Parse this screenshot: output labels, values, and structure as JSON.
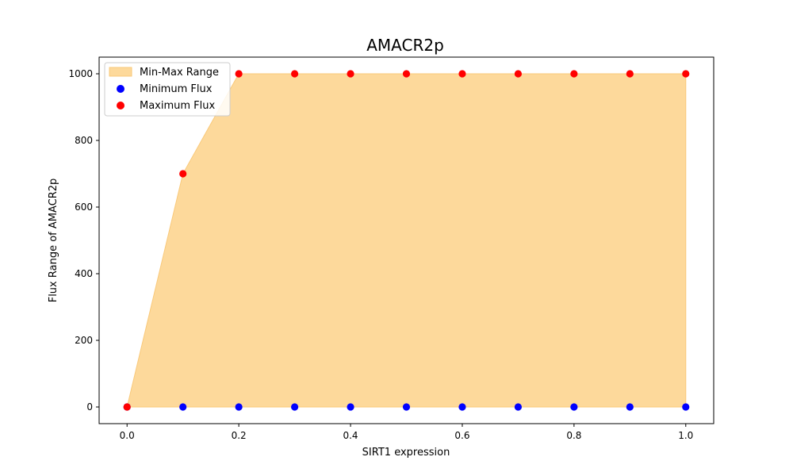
{
  "chart_data": {
    "type": "area",
    "title": "AMACR2p",
    "xlabel": "SIRT1 expression",
    "ylabel": "Flux Range of AMACR2p",
    "x": [
      0.0,
      0.1,
      0.2,
      0.3,
      0.4,
      0.5,
      0.6,
      0.7,
      0.8,
      0.9,
      1.0
    ],
    "series": [
      {
        "name": "Minimum Flux",
        "kind": "scatter",
        "color": "#0000ff",
        "values": [
          0,
          0,
          0,
          0,
          0,
          0,
          0,
          0,
          0,
          0,
          0
        ]
      },
      {
        "name": "Maximum Flux",
        "kind": "scatter",
        "color": "#ff0000",
        "values": [
          0,
          700,
          1000,
          1000,
          1000,
          1000,
          1000,
          1000,
          1000,
          1000,
          1000
        ]
      }
    ],
    "fill": {
      "name": "Min-Max Range",
      "color": "#fdd99b",
      "edge_color": "#f9c97a"
    },
    "xlim": [
      -0.05,
      1.05
    ],
    "ylim": [
      -50,
      1050
    ],
    "xticks": [
      0.0,
      0.2,
      0.4,
      0.6,
      0.8,
      1.0
    ],
    "xtick_labels": [
      "0.0",
      "0.2",
      "0.4",
      "0.6",
      "0.8",
      "1.0"
    ],
    "yticks": [
      0,
      200,
      400,
      600,
      800,
      1000
    ],
    "ytick_labels": [
      "0",
      "200",
      "400",
      "600",
      "800",
      "1000"
    ],
    "legend_position": "top-left",
    "legend": [
      "Min-Max Range",
      "Minimum Flux",
      "Maximum Flux"
    ],
    "grid": false
  }
}
